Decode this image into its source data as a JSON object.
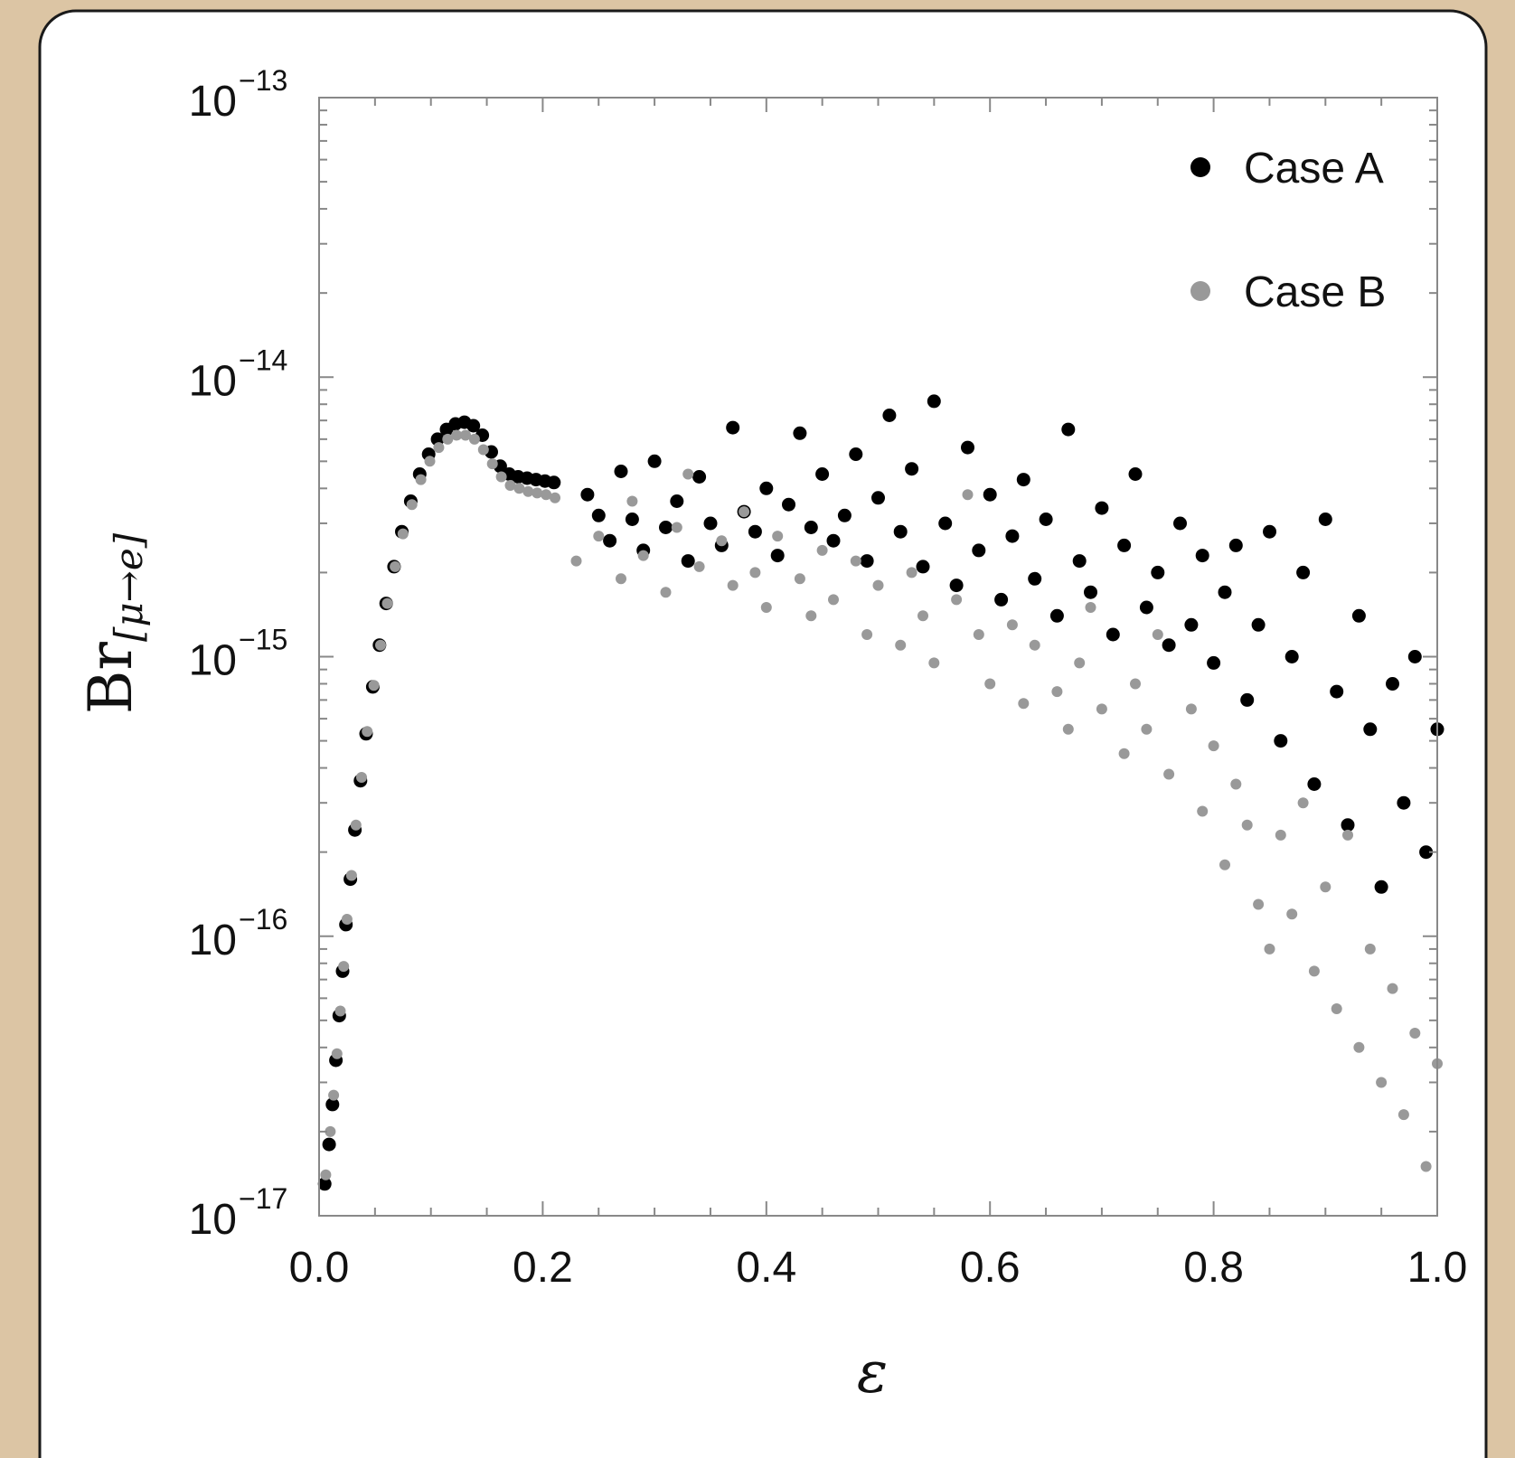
{
  "chart_data": {
    "type": "scatter",
    "xlabel": "ε",
    "ylabel": {
      "main": "Br",
      "subscript": "[μ→e]"
    },
    "xlim": [
      0.0,
      1.0
    ],
    "ylim": [
      1e-17,
      1e-13
    ],
    "yscale": "log",
    "grid": false,
    "legend_position": "top-right",
    "x_ticks": [
      {
        "value": 0.0,
        "label": "0.0"
      },
      {
        "value": 0.2,
        "label": "0.2"
      },
      {
        "value": 0.4,
        "label": "0.4"
      },
      {
        "value": 0.6,
        "label": "0.6"
      },
      {
        "value": 0.8,
        "label": "0.8"
      },
      {
        "value": 1.0,
        "label": "1.0"
      }
    ],
    "y_ticks": [
      {
        "value": 1e-13,
        "base": "10",
        "exp": "−13"
      },
      {
        "value": 1e-14,
        "base": "10",
        "exp": "−14"
      },
      {
        "value": 1e-15,
        "base": "10",
        "exp": "−15"
      },
      {
        "value": 1e-16,
        "base": "10",
        "exp": "−16"
      },
      {
        "value": 1e-17,
        "base": "10",
        "exp": "−17"
      }
    ],
    "series": [
      {
        "name": "Case A",
        "color": "#000000",
        "points": [
          [
            0.005,
            1.3e-17
          ],
          [
            0.009,
            1.8e-17
          ],
          [
            0.012,
            2.5e-17
          ],
          [
            0.015,
            3.6e-17
          ],
          [
            0.018,
            5.2e-17
          ],
          [
            0.021,
            7.5e-17
          ],
          [
            0.024,
            1.1e-16
          ],
          [
            0.028,
            1.6e-16
          ],
          [
            0.032,
            2.4e-16
          ],
          [
            0.037,
            3.6e-16
          ],
          [
            0.042,
            5.3e-16
          ],
          [
            0.048,
            7.8e-16
          ],
          [
            0.054,
            1.1e-15
          ],
          [
            0.06,
            1.55e-15
          ],
          [
            0.067,
            2.1e-15
          ],
          [
            0.074,
            2.8e-15
          ],
          [
            0.082,
            3.6e-15
          ],
          [
            0.09,
            4.5e-15
          ],
          [
            0.098,
            5.3e-15
          ],
          [
            0.106,
            6e-15
          ],
          [
            0.114,
            6.5e-15
          ],
          [
            0.122,
            6.8e-15
          ],
          [
            0.13,
            6.9e-15
          ],
          [
            0.138,
            6.7e-15
          ],
          [
            0.146,
            6.2e-15
          ],
          [
            0.154,
            5.4e-15
          ],
          [
            0.162,
            4.8e-15
          ],
          [
            0.17,
            4.5e-15
          ],
          [
            0.178,
            4.4e-15
          ],
          [
            0.186,
            4.35e-15
          ],
          [
            0.194,
            4.3e-15
          ],
          [
            0.202,
            4.25e-15
          ],
          [
            0.21,
            4.2e-15
          ],
          [
            0.24,
            3.8e-15
          ],
          [
            0.25,
            3.2e-15
          ],
          [
            0.26,
            2.6e-15
          ],
          [
            0.27,
            4.6e-15
          ],
          [
            0.28,
            3.1e-15
          ],
          [
            0.29,
            2.4e-15
          ],
          [
            0.3,
            5e-15
          ],
          [
            0.31,
            2.9e-15
          ],
          [
            0.32,
            3.6e-15
          ],
          [
            0.33,
            2.2e-15
          ],
          [
            0.34,
            4.4e-15
          ],
          [
            0.35,
            3e-15
          ],
          [
            0.36,
            2.5e-15
          ],
          [
            0.37,
            6.6e-15
          ],
          [
            0.38,
            3.3e-15
          ],
          [
            0.39,
            2.8e-15
          ],
          [
            0.4,
            4e-15
          ],
          [
            0.41,
            2.3e-15
          ],
          [
            0.42,
            3.5e-15
          ],
          [
            0.43,
            6.3e-15
          ],
          [
            0.44,
            2.9e-15
          ],
          [
            0.45,
            4.5e-15
          ],
          [
            0.46,
            2.6e-15
          ],
          [
            0.47,
            3.2e-15
          ],
          [
            0.48,
            5.3e-15
          ],
          [
            0.49,
            2.2e-15
          ],
          [
            0.5,
            3.7e-15
          ],
          [
            0.51,
            7.3e-15
          ],
          [
            0.52,
            2.8e-15
          ],
          [
            0.53,
            4.7e-15
          ],
          [
            0.54,
            2.1e-15
          ],
          [
            0.55,
            8.2e-15
          ],
          [
            0.56,
            3e-15
          ],
          [
            0.57,
            1.8e-15
          ],
          [
            0.58,
            5.6e-15
          ],
          [
            0.59,
            2.4e-15
          ],
          [
            0.6,
            3.8e-15
          ],
          [
            0.61,
            1.6e-15
          ],
          [
            0.62,
            2.7e-15
          ],
          [
            0.63,
            4.3e-15
          ],
          [
            0.64,
            1.9e-15
          ],
          [
            0.65,
            3.1e-15
          ],
          [
            0.66,
            1.4e-15
          ],
          [
            0.67,
            6.5e-15
          ],
          [
            0.68,
            2.2e-15
          ],
          [
            0.69,
            1.7e-15
          ],
          [
            0.7,
            3.4e-15
          ],
          [
            0.71,
            1.2e-15
          ],
          [
            0.72,
            2.5e-15
          ],
          [
            0.73,
            4.5e-15
          ],
          [
            0.74,
            1.5e-15
          ],
          [
            0.75,
            2e-15
          ],
          [
            0.76,
            1.1e-15
          ],
          [
            0.77,
            3e-15
          ],
          [
            0.78,
            1.3e-15
          ],
          [
            0.79,
            2.3e-15
          ],
          [
            0.8,
            9.5e-16
          ],
          [
            0.81,
            1.7e-15
          ],
          [
            0.82,
            2.5e-15
          ],
          [
            0.83,
            7e-16
          ],
          [
            0.84,
            1.3e-15
          ],
          [
            0.85,
            2.8e-15
          ],
          [
            0.86,
            5e-16
          ],
          [
            0.87,
            1e-15
          ],
          [
            0.88,
            2e-15
          ],
          [
            0.89,
            3.5e-16
          ],
          [
            0.9,
            3.1e-15
          ],
          [
            0.91,
            7.5e-16
          ],
          [
            0.92,
            2.5e-16
          ],
          [
            0.93,
            1.4e-15
          ],
          [
            0.94,
            5.5e-16
          ],
          [
            0.95,
            1.5e-16
          ],
          [
            0.96,
            8e-16
          ],
          [
            0.97,
            3e-16
          ],
          [
            0.98,
            1e-15
          ],
          [
            0.99,
            2e-16
          ],
          [
            1.0,
            5.5e-16
          ]
        ]
      },
      {
        "name": "Case B",
        "color": "#999999",
        "points": [
          [
            0.006,
            1.4e-17
          ],
          [
            0.01,
            2e-17
          ],
          [
            0.013,
            2.7e-17
          ],
          [
            0.016,
            3.8e-17
          ],
          [
            0.019,
            5.4e-17
          ],
          [
            0.022,
            7.8e-17
          ],
          [
            0.025,
            1.15e-16
          ],
          [
            0.029,
            1.65e-16
          ],
          [
            0.033,
            2.5e-16
          ],
          [
            0.038,
            3.7e-16
          ],
          [
            0.043,
            5.4e-16
          ],
          [
            0.049,
            7.9e-16
          ],
          [
            0.055,
            1.1e-15
          ],
          [
            0.061,
            1.55e-15
          ],
          [
            0.068,
            2.1e-15
          ],
          [
            0.075,
            2.75e-15
          ],
          [
            0.083,
            3.5e-15
          ],
          [
            0.091,
            4.3e-15
          ],
          [
            0.099,
            5e-15
          ],
          [
            0.107,
            5.6e-15
          ],
          [
            0.115,
            6e-15
          ],
          [
            0.123,
            6.2e-15
          ],
          [
            0.131,
            6.2e-15
          ],
          [
            0.139,
            6e-15
          ],
          [
            0.147,
            5.5e-15
          ],
          [
            0.155,
            4.9e-15
          ],
          [
            0.163,
            4.4e-15
          ],
          [
            0.171,
            4.1e-15
          ],
          [
            0.179,
            4e-15
          ],
          [
            0.187,
            3.9e-15
          ],
          [
            0.195,
            3.85e-15
          ],
          [
            0.203,
            3.8e-15
          ],
          [
            0.211,
            3.7e-15
          ],
          [
            0.23,
            2.2e-15
          ],
          [
            0.25,
            2.7e-15
          ],
          [
            0.27,
            1.9e-15
          ],
          [
            0.28,
            3.6e-15
          ],
          [
            0.29,
            2.3e-15
          ],
          [
            0.31,
            1.7e-15
          ],
          [
            0.32,
            2.9e-15
          ],
          [
            0.33,
            4.5e-15
          ],
          [
            0.34,
            2.1e-15
          ],
          [
            0.36,
            2.6e-15
          ],
          [
            0.37,
            1.8e-15
          ],
          [
            0.38,
            3.3e-15
          ],
          [
            0.39,
            2e-15
          ],
          [
            0.4,
            1.5e-15
          ],
          [
            0.41,
            2.7e-15
          ],
          [
            0.43,
            1.9e-15
          ],
          [
            0.44,
            1.4e-15
          ],
          [
            0.45,
            2.4e-15
          ],
          [
            0.46,
            1.6e-15
          ],
          [
            0.48,
            2.2e-15
          ],
          [
            0.49,
            1.2e-15
          ],
          [
            0.5,
            1.8e-15
          ],
          [
            0.52,
            1.1e-15
          ],
          [
            0.53,
            2e-15
          ],
          [
            0.54,
            1.4e-15
          ],
          [
            0.55,
            9.5e-16
          ],
          [
            0.57,
            1.6e-15
          ],
          [
            0.58,
            3.8e-15
          ],
          [
            0.59,
            1.2e-15
          ],
          [
            0.6,
            8e-16
          ],
          [
            0.62,
            1.3e-15
          ],
          [
            0.63,
            6.8e-16
          ],
          [
            0.64,
            1.1e-15
          ],
          [
            0.66,
            7.5e-16
          ],
          [
            0.67,
            5.5e-16
          ],
          [
            0.68,
            9.5e-16
          ],
          [
            0.69,
            1.5e-15
          ],
          [
            0.7,
            6.5e-16
          ],
          [
            0.72,
            4.5e-16
          ],
          [
            0.73,
            8e-16
          ],
          [
            0.74,
            5.5e-16
          ],
          [
            0.75,
            1.2e-15
          ],
          [
            0.76,
            3.8e-16
          ],
          [
            0.78,
            6.5e-16
          ],
          [
            0.79,
            2.8e-16
          ],
          [
            0.8,
            4.8e-16
          ],
          [
            0.81,
            1.8e-16
          ],
          [
            0.82,
            3.5e-16
          ],
          [
            0.83,
            2.5e-16
          ],
          [
            0.84,
            1.3e-16
          ],
          [
            0.85,
            9e-17
          ],
          [
            0.86,
            2.3e-16
          ],
          [
            0.87,
            1.2e-16
          ],
          [
            0.88,
            3e-16
          ],
          [
            0.89,
            7.5e-17
          ],
          [
            0.9,
            1.5e-16
          ],
          [
            0.91,
            5.5e-17
          ],
          [
            0.92,
            2.3e-16
          ],
          [
            0.93,
            4e-17
          ],
          [
            0.94,
            9e-17
          ],
          [
            0.95,
            3e-17
          ],
          [
            0.96,
            6.5e-17
          ],
          [
            0.97,
            2.3e-17
          ],
          [
            0.98,
            4.5e-17
          ],
          [
            0.99,
            1.5e-17
          ],
          [
            1.0,
            3.5e-17
          ]
        ]
      }
    ]
  }
}
